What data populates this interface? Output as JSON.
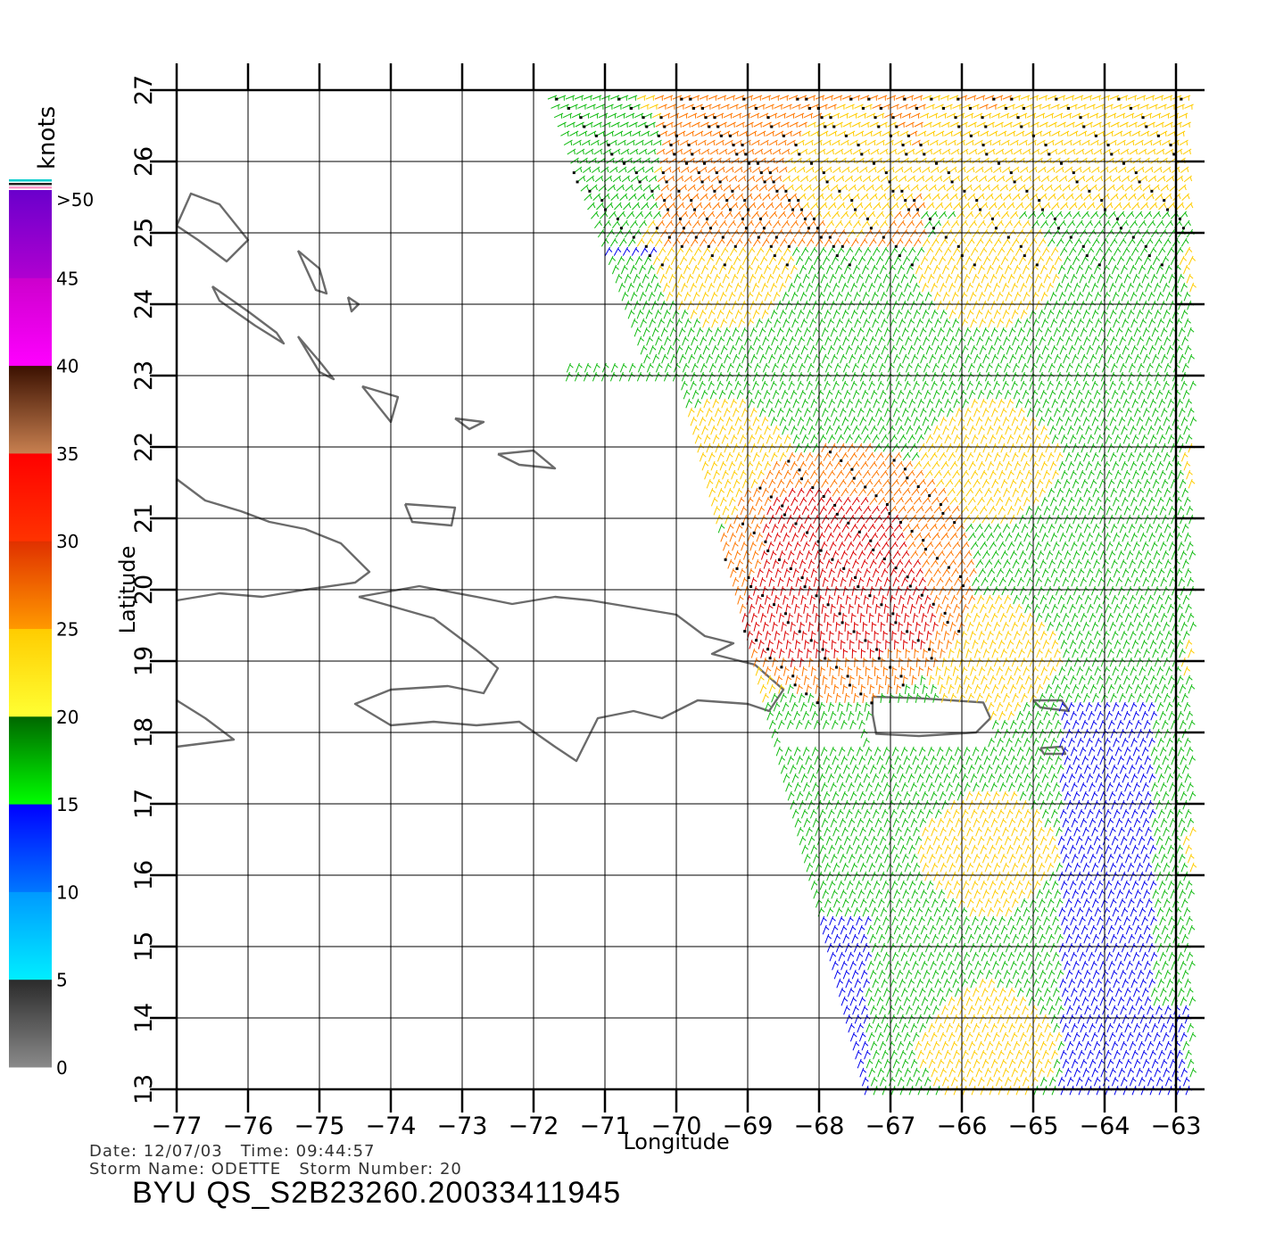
{
  "colorbar": {
    "title": "knots",
    "tick_labels": [
      "0",
      "5",
      "10",
      "15",
      "20",
      "25",
      "30",
      "35",
      "40",
      "45",
      ">50"
    ],
    "bands": [
      {
        "from": 0,
        "to": 5,
        "top": "#2a2a2a",
        "bottom": "#8a8a8a"
      },
      {
        "from": 5,
        "to": 10,
        "top": "#0099ff",
        "bottom": "#00eeff"
      },
      {
        "from": 10,
        "to": 15,
        "top": "#0000ff",
        "bottom": "#0077ff"
      },
      {
        "from": 15,
        "to": 20,
        "top": "#006600",
        "bottom": "#00ff00"
      },
      {
        "from": 20,
        "to": 25,
        "top": "#ffcc00",
        "bottom": "#ffff33"
      },
      {
        "from": 25,
        "to": 30,
        "top": "#e03000",
        "bottom": "#ff9900"
      },
      {
        "from": 30,
        "to": 35,
        "top": "#ff0000",
        "bottom": "#ff3300"
      },
      {
        "from": 35,
        "to": 40,
        "top": "#3a1000",
        "bottom": "#c88050"
      },
      {
        "from": 40,
        "to": 45,
        "top": "#cc00cc",
        "bottom": "#ff00ff"
      },
      {
        "from": 45,
        "to": 50,
        "top": "#6a00cc",
        "bottom": "#b000d0"
      }
    ]
  },
  "axes": {
    "xlabel": "Longitude",
    "ylabel": "Latitude",
    "lon_range": [
      -77,
      -63
    ],
    "lat_range": [
      13,
      27
    ],
    "lon_ticks": [
      -77,
      -76,
      -75,
      -74,
      -73,
      -72,
      -71,
      -70,
      -69,
      -68,
      -67,
      -66,
      -65,
      -64,
      -63
    ],
    "lat_ticks": [
      13,
      14,
      15,
      16,
      17,
      18,
      19,
      20,
      21,
      22,
      23,
      24,
      25,
      26,
      27
    ],
    "lon_tick_labels": [
      "−77",
      "−76",
      "−75",
      "−74",
      "−73",
      "−72",
      "−71",
      "−70",
      "−69",
      "−68",
      "−67",
      "−66",
      "−65",
      "−64",
      "−63"
    ],
    "lat_tick_labels": [
      "13",
      "14",
      "15",
      "16",
      "17",
      "18",
      "19",
      "20",
      "21",
      "22",
      "23",
      "24",
      "25",
      "26",
      "27"
    ],
    "grid": true
  },
  "info": {
    "line1": "Date: 12/07/03   Time: 09:44:57",
    "line2": "Storm Name: ODETTE   Storm Number: 20",
    "product": "BYU QS_S2B23260.20033411945"
  },
  "colors": {
    "coastline": "#6b6b6b",
    "grid": "#000000",
    "rain_flag": "#000000"
  },
  "coastlines": [
    {
      "name": "Cuba",
      "points": [
        [
          -77,
          21.55
        ],
        [
          -76.6,
          21.25
        ],
        [
          -76.1,
          21.1
        ],
        [
          -75.7,
          20.95
        ],
        [
          -75.2,
          20.85
        ],
        [
          -74.7,
          20.65
        ],
        [
          -74.3,
          20.25
        ],
        [
          -74.5,
          20.1
        ],
        [
          -75.2,
          20
        ],
        [
          -75.8,
          19.9
        ],
        [
          -76.4,
          19.95
        ],
        [
          -77,
          19.85
        ]
      ]
    },
    {
      "name": "Jamaica",
      "points": [
        [
          -77,
          18.45
        ],
        [
          -76.6,
          18.2
        ],
        [
          -76.2,
          17.9
        ],
        [
          -76.6,
          17.85
        ],
        [
          -77,
          17.8
        ]
      ]
    },
    {
      "name": "Hispaniola",
      "points": [
        [
          -74.45,
          19.9
        ],
        [
          -73.6,
          20.05
        ],
        [
          -72.8,
          19.9
        ],
        [
          -72.3,
          19.8
        ],
        [
          -71.7,
          19.9
        ],
        [
          -71.2,
          19.85
        ],
        [
          -70.6,
          19.75
        ],
        [
          -70.0,
          19.65
        ],
        [
          -69.6,
          19.35
        ],
        [
          -69.2,
          19.25
        ],
        [
          -69.5,
          19.1
        ],
        [
          -68.9,
          18.95
        ],
        [
          -68.5,
          18.6
        ],
        [
          -68.7,
          18.3
        ],
        [
          -69.0,
          18.4
        ],
        [
          -69.7,
          18.45
        ],
        [
          -70.2,
          18.2
        ],
        [
          -70.6,
          18.3
        ],
        [
          -71.1,
          18.2
        ],
        [
          -71.4,
          17.6
        ],
        [
          -71.7,
          17.8
        ],
        [
          -72.2,
          18.15
        ],
        [
          -72.8,
          18.1
        ],
        [
          -73.4,
          18.15
        ],
        [
          -74.0,
          18.1
        ],
        [
          -74.5,
          18.4
        ],
        [
          -74.0,
          18.6
        ],
        [
          -73.2,
          18.65
        ],
        [
          -72.7,
          18.55
        ],
        [
          -72.5,
          18.9
        ],
        [
          -72.8,
          19.15
        ],
        [
          -73.4,
          19.6
        ],
        [
          -74.45,
          19.9
        ]
      ]
    },
    {
      "name": "Puerto Rico",
      "points": [
        [
          -67.25,
          18.5
        ],
        [
          -66.6,
          18.48
        ],
        [
          -65.7,
          18.42
        ],
        [
          -65.6,
          18.2
        ],
        [
          -65.8,
          18.0
        ],
        [
          -66.6,
          17.95
        ],
        [
          -67.2,
          17.98
        ],
        [
          -67.25,
          18.25
        ],
        [
          -67.25,
          18.5
        ]
      ]
    },
    {
      "name": "Andros",
      "points": [
        [
          -77,
          25.1
        ],
        [
          -76.8,
          25.55
        ],
        [
          -76.4,
          25.4
        ],
        [
          -76.0,
          24.9
        ],
        [
          -76.3,
          24.6
        ],
        [
          -76.7,
          24.9
        ],
        [
          -77,
          25.1
        ]
      ]
    },
    {
      "name": "Eleuthera",
      "points": [
        [
          -75.3,
          24.75
        ],
        [
          -75.0,
          24.5
        ],
        [
          -74.9,
          24.15
        ],
        [
          -75.05,
          24.2
        ],
        [
          -75.3,
          24.75
        ]
      ]
    },
    {
      "name": "Exuma",
      "points": [
        [
          -76.5,
          24.25
        ],
        [
          -76.0,
          23.9
        ],
        [
          -75.6,
          23.6
        ],
        [
          -75.5,
          23.45
        ],
        [
          -75.9,
          23.7
        ],
        [
          -76.4,
          24.05
        ],
        [
          -76.5,
          24.25
        ]
      ]
    },
    {
      "name": "Long Island",
      "points": [
        [
          -75.3,
          23.55
        ],
        [
          -75.0,
          23.2
        ],
        [
          -74.8,
          22.95
        ],
        [
          -75.0,
          23.05
        ],
        [
          -75.3,
          23.55
        ]
      ]
    },
    {
      "name": "San Salvador",
      "points": [
        [
          -74.6,
          24.1
        ],
        [
          -74.45,
          24.0
        ],
        [
          -74.55,
          23.9
        ],
        [
          -74.6,
          24.1
        ]
      ]
    },
    {
      "name": "Inagua",
      "points": [
        [
          -73.8,
          21.2
        ],
        [
          -73.1,
          21.15
        ],
        [
          -73.15,
          20.9
        ],
        [
          -73.7,
          20.95
        ],
        [
          -73.8,
          21.2
        ]
      ]
    },
    {
      "name": "Acklins",
      "points": [
        [
          -74.4,
          22.85
        ],
        [
          -73.9,
          22.7
        ],
        [
          -74.0,
          22.35
        ],
        [
          -74.2,
          22.6
        ],
        [
          -74.4,
          22.85
        ]
      ]
    },
    {
      "name": "Mayaguana",
      "points": [
        [
          -73.1,
          22.4
        ],
        [
          -72.7,
          22.35
        ],
        [
          -72.9,
          22.25
        ],
        [
          -73.1,
          22.4
        ]
      ]
    },
    {
      "name": "Caicos",
      "points": [
        [
          -72.5,
          21.9
        ],
        [
          -72.0,
          21.95
        ],
        [
          -71.7,
          21.7
        ],
        [
          -72.2,
          21.75
        ],
        [
          -72.5,
          21.9
        ]
      ]
    },
    {
      "name": "Virgin Islands",
      "points": [
        [
          -65.0,
          18.45
        ],
        [
          -64.6,
          18.45
        ],
        [
          -64.5,
          18.3
        ],
        [
          -64.9,
          18.35
        ],
        [
          -65.0,
          18.45
        ]
      ]
    },
    {
      "name": "St Croix",
      "points": [
        [
          -64.9,
          17.78
        ],
        [
          -64.6,
          17.8
        ],
        [
          -64.55,
          17.7
        ],
        [
          -64.85,
          17.7
        ],
        [
          -64.9,
          17.78
        ]
      ]
    }
  ]
}
